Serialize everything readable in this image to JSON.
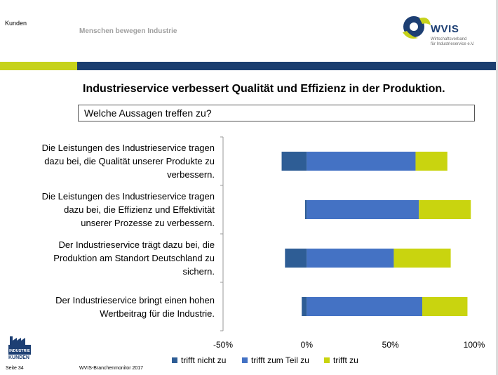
{
  "header": {
    "section": "Kunden",
    "tagline": "Menschen bewegen Industrie",
    "logo_text": "WVIS",
    "logo_sub": [
      "Wirtschaftsverband",
      "für Industrieservice e.V."
    ]
  },
  "slide": {
    "title": "Industrieservice verbessert Qualität und Effizienz in der Produktion.",
    "question": "Welche Aussagen treffen zu?"
  },
  "colors": {
    "navy": "#1b3e6f",
    "lime": "#c6d21b",
    "trifft_nicht_zu": "#2e5d95",
    "trifft_zum_teil_zu": "#4472c4",
    "trifft_zu": "#c9d40f"
  },
  "chart_data": {
    "type": "bar",
    "orientation": "horizontal",
    "stacked": "diverging",
    "categories": [
      [
        "Die Leistungen des Industrieservice tragen",
        "dazu bei, die Qualität unserer Produkte zu",
        "verbessern."
      ],
      [
        "Die Leistungen des Industrieservice tragen",
        "dazu bei, die Effizienz und Effektivität",
        "unserer Prozesse zu verbessern."
      ],
      [
        "Der Industrieservice trägt dazu bei, die",
        "Produktion am Standort Deutschland zu",
        "sichern."
      ],
      [
        "Der Industrieservice bringt einen hohen",
        "Wertbeitrag für die Industrie."
      ]
    ],
    "series": [
      {
        "name": "trifft nicht zu",
        "values": [
          15,
          1,
          13,
          3
        ]
      },
      {
        "name": "trifft zum Teil zu",
        "values": [
          65,
          67,
          52,
          69
        ]
      },
      {
        "name": "trifft zu",
        "values": [
          19,
          31,
          34,
          27
        ]
      }
    ],
    "xlim": [
      -50,
      100
    ],
    "ticks": [
      -50,
      0,
      50,
      100
    ],
    "tick_labels": [
      "-50%",
      "0%",
      "50%",
      "100%"
    ],
    "legend_position": "bottom",
    "grid": false
  },
  "footer": {
    "badge_top": "INDUSTRIE",
    "badge_bottom": "KUNDEN",
    "page": "Seite 34",
    "source": "WVIS-Branchenmonitor 2017"
  }
}
